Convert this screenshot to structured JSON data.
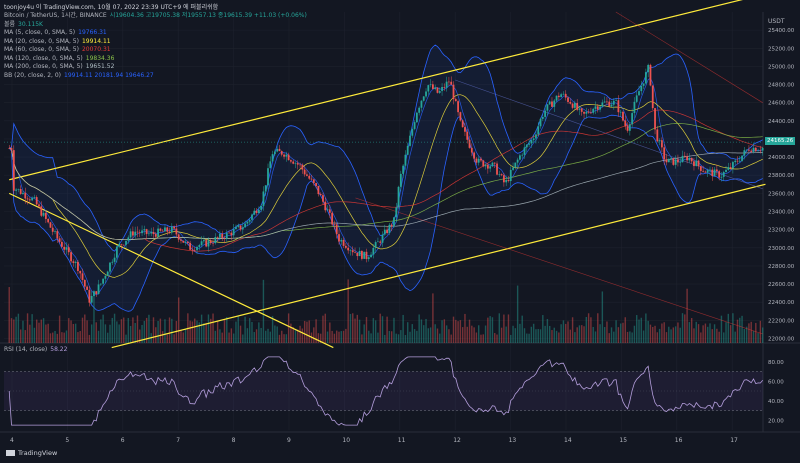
{
  "title_bar": "toonjoy4u 이 TradingView.com, 10월 07, 2022 23:39 UTC+9 에 퍼블리쉬함",
  "legend": {
    "symbol": "Bitcoin / TetherUS, 1시간, BINANCE",
    "ohlc": "시19604.36  고19705.38  저19557.13  종19615.39  +11.03 (+0.06%)",
    "volume": {
      "label": "볼륨",
      "value": "30.115K"
    },
    "indicators": [
      {
        "label": "MA (5, close, 0, SMA, 5)",
        "value": "19766.31",
        "color": "#2962ff"
      },
      {
        "label": "MA (20, close, 0, SMA, 5)",
        "value": "19914.11",
        "color": "#ffeb3b"
      },
      {
        "label": "MA (60, close, 0, SMA, 5)",
        "value": "20070.31",
        "color": "#e53935"
      },
      {
        "label": "MA (120, close, 0, SMA, 5)",
        "value": "19834.36",
        "color": "#8bc34a"
      },
      {
        "label": "MA (200, close, 0, SMA, 5)",
        "value": "19651.52",
        "color": "#b0bec5"
      },
      {
        "label": "BB (20, close, 2, 0)",
        "value": "19914.11  20181.94  19646.27",
        "color": "#2962ff"
      }
    ],
    "rsi": {
      "label": "RSI (14, close)",
      "value": "58.22"
    }
  },
  "price_axis": {
    "unit": "USDT",
    "current": "24165.26",
    "ticks": [
      25400,
      25200,
      25000,
      24800,
      24600,
      24400,
      24200,
      24000,
      23800,
      23600,
      23400,
      23200,
      23000,
      22800,
      22600,
      22400,
      22200,
      22000
    ]
  },
  "rsi_axis": {
    "ticks": [
      "80.00",
      "60.00",
      "40.00",
      "20.00"
    ]
  },
  "footer": "TradingView",
  "colors": {
    "up": "#26a69a",
    "down": "#ef5350",
    "bg": "#131722",
    "channel": "#ffeb3b"
  },
  "chart_data": {
    "type": "candlestick",
    "x_label_list": [
      "4",
      "5",
      "6",
      "7",
      "8",
      "9",
      "10",
      "11",
      "12",
      "13",
      "14",
      "15",
      "16",
      "17"
    ],
    "ylim": [
      21950,
      25600
    ],
    "rsi_ylim": [
      10,
      90
    ],
    "anchors": [
      {
        "day": 4.0,
        "price": 23680
      },
      {
        "day": 4.4,
        "price": 23520
      },
      {
        "day": 4.8,
        "price": 23120
      },
      {
        "day": 5.2,
        "price": 22780
      },
      {
        "day": 5.4,
        "price": 22420
      },
      {
        "day": 5.6,
        "price": 22600
      },
      {
        "day": 5.9,
        "price": 23000
      },
      {
        "day": 6.2,
        "price": 23180
      },
      {
        "day": 6.5,
        "price": 23150
      },
      {
        "day": 6.9,
        "price": 23200
      },
      {
        "day": 7.2,
        "price": 23000
      },
      {
        "day": 7.5,
        "price": 23050
      },
      {
        "day": 7.9,
        "price": 23150
      },
      {
        "day": 8.2,
        "price": 23250
      },
      {
        "day": 8.5,
        "price": 23500
      },
      {
        "day": 8.7,
        "price": 24050
      },
      {
        "day": 8.9,
        "price": 24050
      },
      {
        "day": 9.2,
        "price": 23900
      },
      {
        "day": 9.5,
        "price": 23650
      },
      {
        "day": 9.7,
        "price": 23400
      },
      {
        "day": 9.9,
        "price": 23100
      },
      {
        "day": 10.2,
        "price": 22950
      },
      {
        "day": 10.4,
        "price": 22900
      },
      {
        "day": 10.6,
        "price": 23050
      },
      {
        "day": 10.9,
        "price": 23300
      },
      {
        "day": 11.0,
        "price": 23750
      },
      {
        "day": 11.3,
        "price": 24500
      },
      {
        "day": 11.5,
        "price": 24800
      },
      {
        "day": 11.7,
        "price": 24700
      },
      {
        "day": 11.9,
        "price": 24850
      },
      {
        "day": 12.1,
        "price": 24350
      },
      {
        "day": 12.4,
        "price": 23950
      },
      {
        "day": 12.7,
        "price": 23900
      },
      {
        "day": 12.9,
        "price": 23700
      },
      {
        "day": 13.2,
        "price": 24050
      },
      {
        "day": 13.4,
        "price": 24200
      },
      {
        "day": 13.6,
        "price": 24500
      },
      {
        "day": 13.9,
        "price": 24700
      },
      {
        "day": 14.1,
        "price": 24600
      },
      {
        "day": 14.3,
        "price": 24450
      },
      {
        "day": 14.5,
        "price": 24550
      },
      {
        "day": 14.7,
        "price": 24600
      },
      {
        "day": 14.9,
        "price": 24600
      },
      {
        "day": 15.1,
        "price": 24300
      },
      {
        "day": 15.3,
        "price": 24700
      },
      {
        "day": 15.5,
        "price": 25000
      },
      {
        "day": 15.6,
        "price": 24300
      },
      {
        "day": 15.8,
        "price": 23950
      },
      {
        "day": 16.0,
        "price": 23950
      },
      {
        "day": 16.2,
        "price": 24000
      },
      {
        "day": 16.5,
        "price": 23850
      },
      {
        "day": 16.8,
        "price": 23800
      },
      {
        "day": 17.0,
        "price": 23900
      },
      {
        "day": 17.3,
        "price": 24100
      }
    ],
    "channel_lines": [
      {
        "from": {
          "day": 3.95,
          "price": 23750
        },
        "to": {
          "day": 17.6,
          "price": 25800
        }
      },
      {
        "from": {
          "day": 5.8,
          "price": 21900
        },
        "to": {
          "day": 17.6,
          "price": 23700
        }
      },
      {
        "from": {
          "day": 3.95,
          "price": 23600
        },
        "to": {
          "day": 9.8,
          "price": 21900
        }
      }
    ]
  }
}
